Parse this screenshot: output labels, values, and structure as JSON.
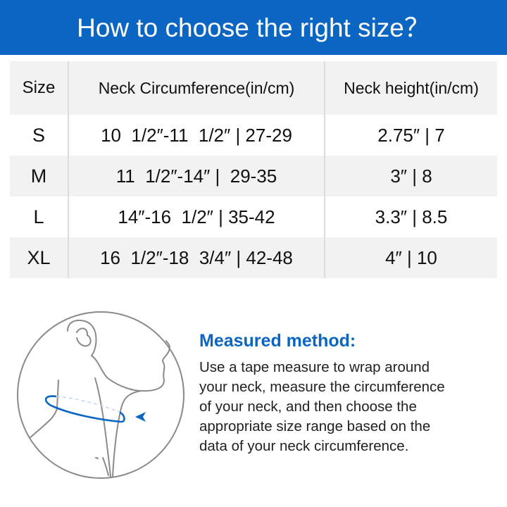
{
  "header": {
    "title": "How to choose the right size？"
  },
  "table": {
    "columns": [
      "Size",
      "Neck Circumference(in/cm)",
      "Neck height(in/cm)"
    ],
    "rows": [
      {
        "size": "S",
        "circumference": "10  1/2″-11  1/2″ | 27-29",
        "height": "2.75″ | 7"
      },
      {
        "size": "M",
        "circumference": "11  1/2″-14″ |  29-35",
        "height": "3″ | 8"
      },
      {
        "size": "L",
        "circumference": "14″-16  1/2″ | 35-42",
        "height": "3.3″ | 8.5"
      },
      {
        "size": "XL",
        "circumference": "16  1/2″-18  3/4″ | 42-48",
        "height": "4″ | 10"
      }
    ]
  },
  "method": {
    "title": "Measured method:",
    "lines": [
      "Use a tape measure to wrap around",
      "your neck, measure the circumference",
      "of your neck, and then choose the",
      "appropriate size range based on the",
      "data of your neck circumference."
    ]
  },
  "colors": {
    "accent": "#0a66c2",
    "row_gray": "#f2f2f2"
  },
  "icons": {
    "illustration": "neck-measurement-illustration"
  }
}
